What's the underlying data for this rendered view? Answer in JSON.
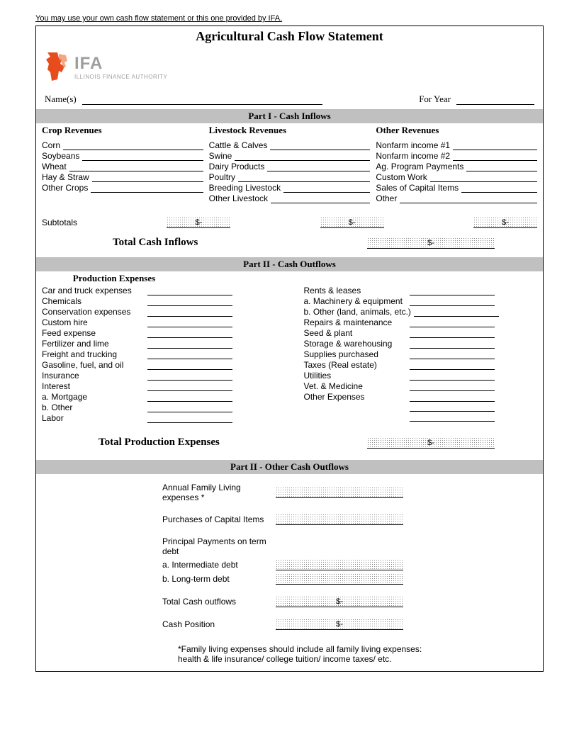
{
  "note": "You may use your own cash flow statement or this one provided by IFA.",
  "title": "Agricultural Cash Flow Statement",
  "logo": {
    "ifa": "IFA",
    "sub": "ILLINOIS FINANCE AUTHORITY"
  },
  "header": {
    "names_label": "Name(s)",
    "year_label": "For Year"
  },
  "part1": {
    "heading": "Part I - Cash Inflows",
    "crop_head": "Crop Revenues",
    "crop": [
      "Corn",
      "Soybeans",
      "Wheat",
      "Hay & Straw",
      "Other Crops"
    ],
    "live_head": "Livestock Revenues",
    "live": [
      "Cattle & Calves",
      "Swine",
      "Dairy Products",
      "Poultry",
      "Breeding Livestock",
      "Other Livestock"
    ],
    "other_head": "Other Revenues",
    "other": [
      "Nonfarm income #1",
      "Nonfarm income #2",
      "Ag. Program Payments",
      "Custom Work",
      "Sales of Capital Items",
      "Other"
    ],
    "subtotals": "Subtotals",
    "dollar": "$-",
    "total_label": "Total Cash Inflows"
  },
  "part2": {
    "heading": "Part II - Cash Outflows",
    "prod_head": "Production Expenses",
    "left": [
      "Car and truck expenses",
      "Chemicals",
      "Conservation expenses",
      "Custom hire",
      "Feed expense",
      "Fertilizer and lime",
      "Freight and trucking",
      "Gasoline, fuel, and oil",
      "Insurance",
      "Interest",
      "a. Mortgage",
      "b. Other",
      "Labor"
    ],
    "right": [
      "Rents & leases",
      "a. Machinery & equipment",
      "b. Other (land, animals, etc.)",
      "Repairs & maintenance",
      "Seed & plant",
      "Storage & warehousing",
      "Supplies purchased",
      "Taxes (Real estate)",
      "Utilities",
      "Vet. & Medicine",
      "Other Expenses",
      "",
      ""
    ],
    "total_label": "Total Production Expenses",
    "dollar": "$-"
  },
  "part2b": {
    "heading": "Part II - Other Cash Outflows",
    "rows": [
      {
        "label": "Annual Family Living expenses *",
        "box": true
      },
      {
        "gap": true
      },
      {
        "label": "Purchases of Capital Items",
        "box": true
      },
      {
        "gap": true
      },
      {
        "label": "Principal Payments on term debt",
        "box": false
      },
      {
        "label": "a. Intermediate debt",
        "box": true
      },
      {
        "label": "b. Long-term debt",
        "box": true
      },
      {
        "gap": true
      },
      {
        "label": "Total Cash outflows",
        "box": true,
        "dollar": "$-"
      },
      {
        "gap": true
      },
      {
        "label": "Cash Position",
        "box": true,
        "dollar": "$-"
      }
    ],
    "footnote": "*Family living expenses should include all family living expenses: health & life insurance/ college tuition/ income taxes/ etc."
  }
}
